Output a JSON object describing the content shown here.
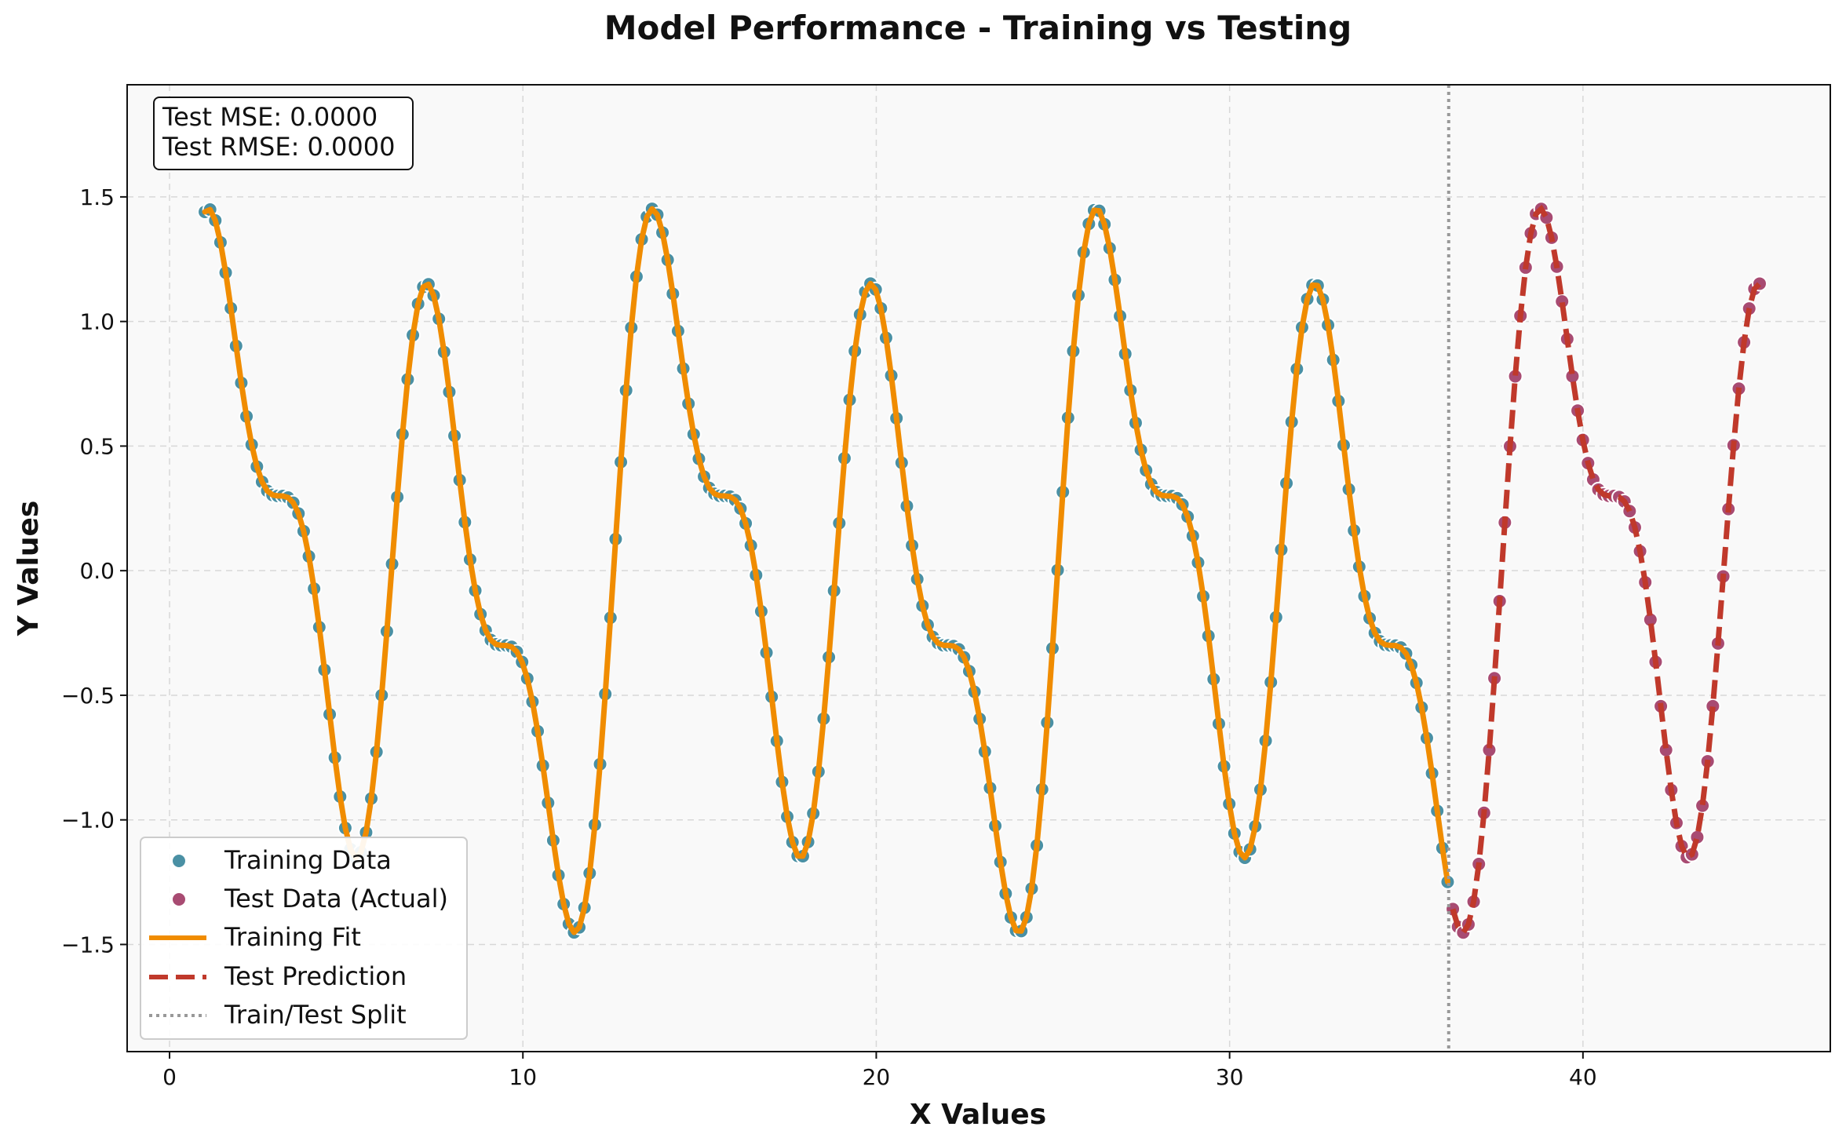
{
  "chart_data": {
    "type": "line",
    "title": "Model Performance - Training vs Testing",
    "xlabel": "X Values",
    "ylabel": "Y Values",
    "xlim": [
      -1.2,
      47.0
    ],
    "ylim": [
      -1.93,
      1.95
    ],
    "x_ticks": [
      0,
      10,
      20,
      30,
      40
    ],
    "x_tick_labels": [
      "0",
      "10",
      "20",
      "30",
      "40"
    ],
    "y_ticks": [
      -1.5,
      -1.0,
      -0.5,
      0.0,
      0.5,
      1.0,
      1.5
    ],
    "y_tick_labels": [
      "−1.5",
      "−1.0",
      "−0.5",
      "0.0",
      "0.5",
      "1.0",
      "1.5"
    ],
    "grid": true,
    "split_x": 36.2,
    "function": "y = sin(x) + 0.5*sin(2x) + 0.3*sin(0.5x)",
    "sampling": {
      "x_start": 1.0,
      "x_end": 45.0,
      "n_points": 300,
      "train_count": 240
    },
    "annotation": {
      "lines": [
        "Test MSE: 0.0000",
        "Test RMSE: 0.0000"
      ],
      "placement": "top-left"
    },
    "legend": {
      "placement": "lower-left",
      "entries": [
        {
          "label": "Training Data",
          "kind": "marker",
          "color": "#4a90a4"
        },
        {
          "label": "Test Data (Actual)",
          "kind": "marker",
          "color": "#a84b72"
        },
        {
          "label": "Training Fit",
          "kind": "solid-line",
          "color": "#f08c00"
        },
        {
          "label": "Test Prediction",
          "kind": "dashed-line",
          "color": "#c0392b"
        },
        {
          "label": "Train/Test Split",
          "kind": "dotted-line",
          "color": "#999999"
        }
      ]
    },
    "colors": {
      "train_marker": "#4a90a4",
      "test_marker": "#a84b72",
      "train_fit": "#f08c00",
      "test_pred": "#c0392b",
      "split_line": "#999999",
      "plot_background": "#f9f9f9"
    }
  }
}
